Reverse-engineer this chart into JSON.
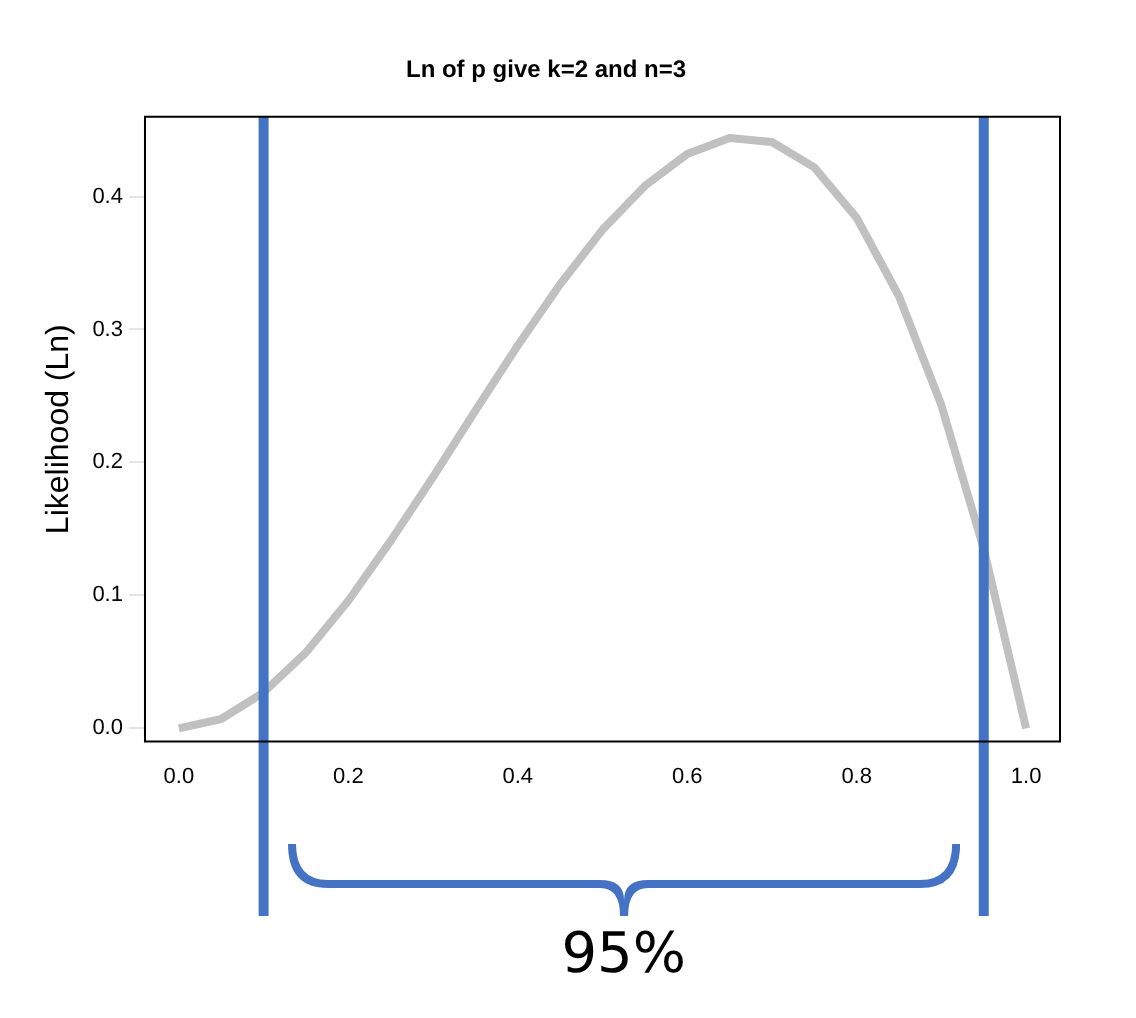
{
  "chart_data": {
    "type": "line",
    "title": "Ln of p give k=2 and n=3",
    "ylabel": "Likelihood (Ln)",
    "x": [
      0,
      0.05,
      0.1,
      0.15,
      0.2,
      0.25,
      0.3,
      0.35,
      0.4,
      0.45,
      0.5,
      0.55,
      0.6,
      0.65,
      0.7,
      0.75,
      0.8,
      0.85,
      0.9,
      0.95,
      1
    ],
    "series": [
      {
        "color": "#c0c0c0",
        "values": [
          0,
          0.007,
          0.027,
          0.057,
          0.096,
          0.141,
          0.189,
          0.239,
          0.288,
          0.334,
          0.375,
          0.408,
          0.432,
          0.444,
          0.441,
          0.422,
          0.384,
          0.325,
          0.243,
          0.135,
          0
        ]
      }
    ],
    "xlim": [
      -0.04,
      1.04
    ],
    "xticks": [
      {
        "value": 0,
        "label": "0.0"
      },
      0.2,
      0.4,
      0.6,
      0.8,
      {
        "value": 1,
        "label": "1.0"
      }
    ],
    "ylim": [
      -0.01,
      0.46
    ],
    "yticks": [
      {
        "value": 0,
        "label": "0.0"
      },
      0.1,
      0.2,
      0.3,
      0.4
    ],
    "ref_lines": [
      {
        "axis": "x",
        "value": 0.1,
        "color": "#4472c4"
      },
      {
        "axis": "x",
        "value": 0.95,
        "color": "#4472c4"
      }
    ],
    "annotations": [
      "95%"
    ],
    "grid": false,
    "legend": false,
    "marker": "none",
    "line_style": "solid"
  }
}
